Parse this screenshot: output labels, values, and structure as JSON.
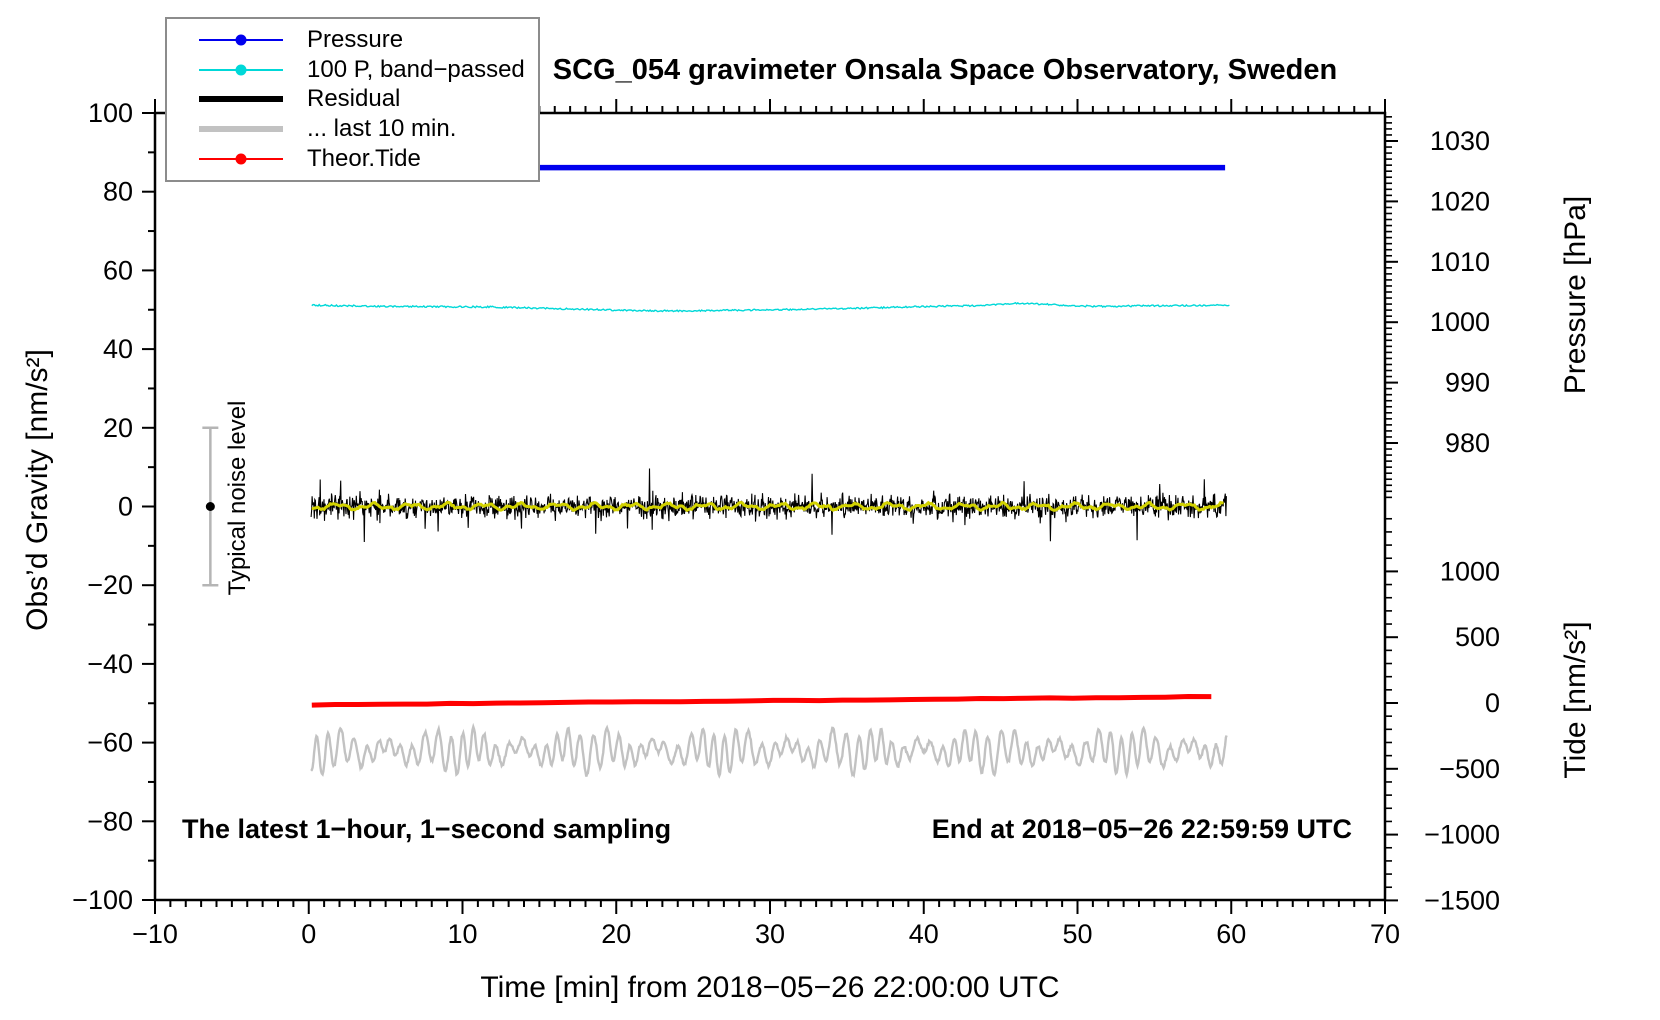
{
  "title": "SCG_054 gravimeter Onsala Space Observatory, Sweden",
  "annotations": {
    "sampling_note": "The latest 1−hour, 1−second sampling",
    "end_time": "End at 2018−05−26 22:59:59 UTC",
    "noise_label": "Typical noise level"
  },
  "legend": {
    "position": "top-left-inside",
    "items": [
      {
        "label": "Pressure",
        "color": "#0000ee",
        "style": "line-dot",
        "line_width": 2
      },
      {
        "label": "100 P, band−passed",
        "color": "#00d8d8",
        "style": "line-dot",
        "line_width": 2
      },
      {
        "label": "Residual",
        "color": "#000000",
        "style": "line",
        "line_width": 6
      },
      {
        "label": "... last 10 min.",
        "color": "#c2c2c2",
        "style": "line",
        "line_width": 6
      },
      {
        "label": "Theor.Tide",
        "color": "#ff0000",
        "style": "line-dot",
        "line_width": 2
      }
    ]
  },
  "axes": {
    "x": {
      "label": "Time [min] from 2018−05−26 22:00:00 UTC",
      "min": -10,
      "max": 70,
      "major_step": 10,
      "minor_step": 1
    },
    "y_left": {
      "label": "Obs’d Gravity [nm/s²]",
      "min": -100,
      "max": 100,
      "major_step": 20,
      "minor_step": 10
    },
    "pressure": {
      "label": "Pressure [hPa]",
      "majors": [
        1030,
        1020,
        1010,
        1000,
        990,
        980
      ],
      "minor_step": 1,
      "minor_min": 971,
      "minor_max": 1034
    },
    "tide": {
      "label": "Tide [nm/s²]",
      "majors": [
        1000,
        500,
        0,
        -500,
        -1000,
        -1500
      ],
      "minor_step": 100,
      "minor_min": -1500,
      "minor_max": 1400
    }
  },
  "chart_data": {
    "type": "line",
    "title": "SCG_054 gravimeter Onsala Space Observatory, Sweden",
    "xlabel": "Time [min] from 2018−05−26 22:00:00 UTC",
    "x_range": [
      -10,
      70
    ],
    "grid": false,
    "y_axes": [
      {
        "id": "gravity",
        "side": "left",
        "label": "Obs’d Gravity [nm/s²]",
        "range": [
          -100,
          100
        ]
      },
      {
        "id": "pressure",
        "side": "right",
        "label": "Pressure [hPa]",
        "visible_range": [
          970,
          1035
        ]
      },
      {
        "id": "tide",
        "side": "right",
        "label": "Tide [nm/s²]",
        "range": [
          -1500,
          1500
        ]
      }
    ],
    "series": [
      {
        "name": "Pressure",
        "color": "#0000ee",
        "axis": "pressure",
        "units": "hPa",
        "shape": "constant",
        "t_range": [
          0,
          60
        ],
        "value": 1025.6
      },
      {
        "name": "100 P, band−passed",
        "color": "#00d8d8",
        "axis": "gravity",
        "shape": "smooth-wave",
        "points": {
          "t": [
            0,
            4,
            8,
            12,
            16,
            20,
            24,
            28,
            32,
            36,
            40,
            44,
            46,
            48,
            50,
            52,
            54,
            56,
            58,
            60
          ],
          "y": [
            51.2,
            50.9,
            50.8,
            50.7,
            50.3,
            49.9,
            49.7,
            49.9,
            50.1,
            50.4,
            50.8,
            51.1,
            51.6,
            51.4,
            51.0,
            50.8,
            51.0,
            51.0,
            51.1,
            51.2
          ]
        }
      },
      {
        "name": "Residual",
        "color": "#000000",
        "axis": "gravity",
        "shape": "noise",
        "t_range": [
          0,
          60
        ],
        "mean": 0,
        "typical_range": [
          -4,
          4
        ],
        "spike_range": [
          -9,
          9
        ],
        "description": "1-second sampled gravity residual, zero-mean noise"
      },
      {
        "name": "Residual smoothed (yellow overlay)",
        "color": "#d2d200",
        "axis": "gravity",
        "shape": "smooth-wave",
        "t_range": [
          0,
          60
        ],
        "mean": 0,
        "amplitude": 0.9
      },
      {
        "name": "... last 10 min.",
        "color": "#c2c2c2",
        "axis": "gravity",
        "shape": "oscillation",
        "t_range": [
          0,
          60
        ],
        "center": -62,
        "amplitude": 6.5,
        "description": "Residual of the last 10 minutes re-plotted magnified, offset to -62 on gravity axis"
      },
      {
        "name": "Theor.Tide",
        "color": "#ff0000",
        "axis": "tide",
        "units": "nm/s²",
        "shape": "near-linear",
        "t": [
          0,
          60
        ],
        "values": [
          -15,
          50
        ],
        "gravity_axis_position": [
          -51,
          -49
        ]
      }
    ],
    "noise_bar": {
      "t": -6.4,
      "center": 0,
      "half_range": 20,
      "label": "Typical noise level",
      "bar_color": "#b5b5b5",
      "dot_color": "#000000"
    },
    "annotations": [
      "The latest 1−hour, 1−second sampling",
      "End at 2018−05−26 22:59:59 UTC"
    ],
    "legend_entries": [
      "Pressure",
      "100 P, band−passed",
      "Residual",
      "... last 10 min.",
      "Theor.Tide"
    ]
  }
}
